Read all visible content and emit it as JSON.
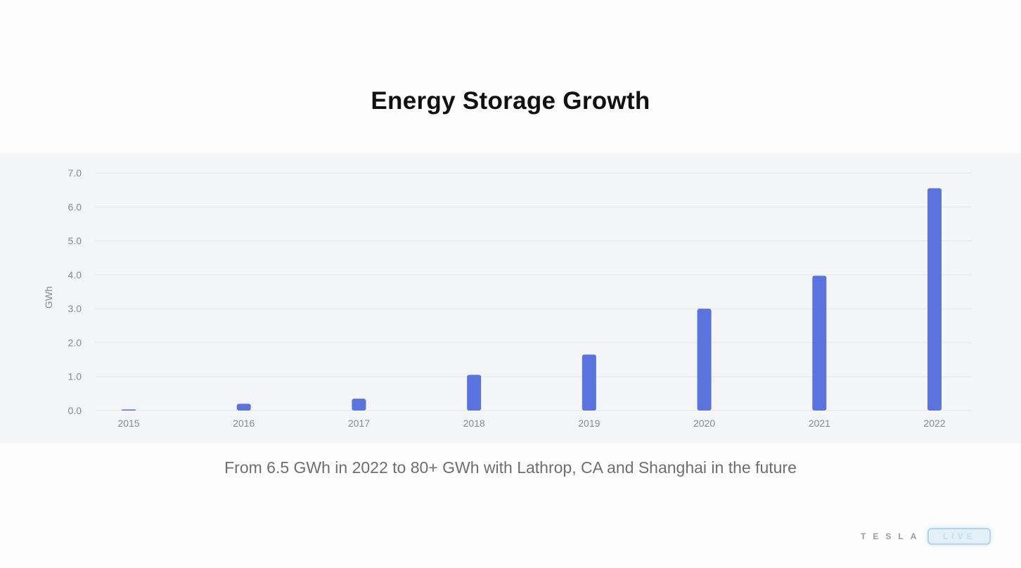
{
  "slide": {
    "title": "Energy Storage Growth",
    "caption": "From 6.5 GWh in 2022 to 80+ GWh with Lathrop, CA and Shanghai in the future"
  },
  "branding": {
    "wordmark": "TESLA",
    "badge": "LIVE"
  },
  "colors": {
    "bar": "#5b73dc",
    "panel": "#f4f5f6"
  },
  "chart_data": {
    "type": "bar",
    "title": "",
    "xlabel": "",
    "ylabel": "GWh",
    "categories": [
      "2015",
      "2016",
      "2017",
      "2018",
      "2019",
      "2020",
      "2021",
      "2022"
    ],
    "values": [
      0.03,
      0.2,
      0.35,
      1.05,
      1.65,
      3.0,
      3.97,
      6.55
    ],
    "ylim": [
      0,
      7
    ],
    "yticks": [
      "0.0",
      "1.0",
      "2.0",
      "3.0",
      "4.0",
      "5.0",
      "6.0",
      "7.0"
    ],
    "grid": true,
    "legend": "none"
  }
}
